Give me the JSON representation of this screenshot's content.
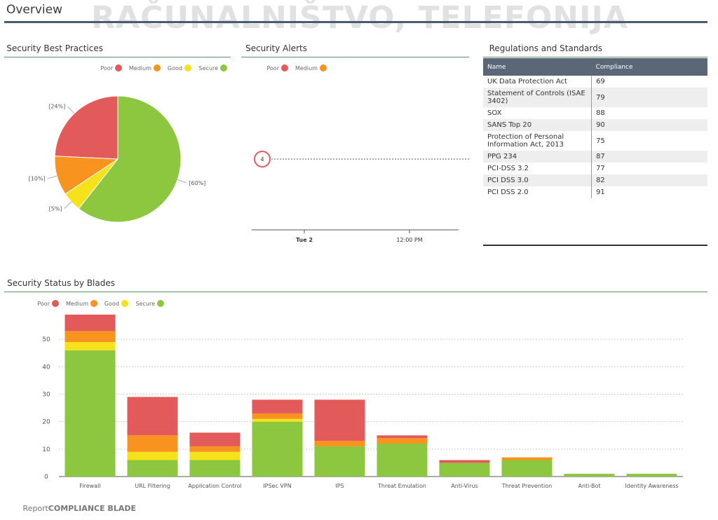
{
  "header": {
    "title": "Overview",
    "watermark": "RAČUNALNIŠTVO, TELEFONIJA"
  },
  "colors": {
    "secure": "#8dc63f",
    "good": "#f6e21a",
    "medium": "#f7931e",
    "poor": "#e25a5a",
    "header_rule": "#4a5a73",
    "table_header": "#5b6677"
  },
  "best_practices": {
    "title": "Security Best Practices",
    "legend": [
      "Secure",
      "Good",
      "Medium",
      "Poor"
    ]
  },
  "alerts": {
    "title": "Security Alerts",
    "legend": [
      "Medium",
      "Poor"
    ],
    "marker_label": "4",
    "x_ticks": [
      "Tue 2",
      "12:00 PM"
    ]
  },
  "regulations": {
    "title": "Regulations and Standards",
    "columns": [
      "Name",
      "Compliance"
    ],
    "rows": [
      {
        "name": "UK Data Protection Act",
        "compliance": "69"
      },
      {
        "name": "Statement of Controls (ISAE 3402)",
        "compliance": "79"
      },
      {
        "name": "SOX",
        "compliance": "88"
      },
      {
        "name": "SANS Top 20",
        "compliance": "90"
      },
      {
        "name": "Protection of Personal Information Act, 2013",
        "compliance": "75"
      },
      {
        "name": "PPG 234",
        "compliance": "87"
      },
      {
        "name": "PCI-DSS 3.2",
        "compliance": "77"
      },
      {
        "name": "PCI DSS 3.0",
        "compliance": "82"
      },
      {
        "name": "PCI DSS 2.0",
        "compliance": "91"
      }
    ]
  },
  "blades": {
    "title": "Security Status by Blades",
    "legend": [
      "Secure",
      "Good",
      "Medium",
      "Poor"
    ]
  },
  "footer": {
    "bold": "COMPLIANCE BLADE",
    "normal": " Report"
  },
  "chart_data": [
    {
      "type": "pie",
      "title": "Security Best Practices",
      "slices": [
        {
          "name": "Poor",
          "value": 24,
          "label": "[24%]"
        },
        {
          "name": "Medium",
          "value": 10,
          "label": "[10%]"
        },
        {
          "name": "Good",
          "value": 5,
          "label": "[5%]"
        },
        {
          "name": "Secure",
          "value": 60,
          "label": "[60%]"
        }
      ]
    },
    {
      "type": "scatter",
      "title": "Security Alerts",
      "x": [
        "Tue 2",
        "12:00 PM"
      ],
      "points": [
        {
          "series": "Poor",
          "x": "Tue 2",
          "value": 4
        }
      ]
    },
    {
      "type": "bar",
      "stacked": true,
      "title": "Security Status by Blades",
      "categories": [
        "Firewall",
        "URL Filtering",
        "Application Control",
        "IPSec VPN",
        "IPS",
        "Threat Emulation",
        "Anti-Virus",
        "Threat Prevention",
        "Anti-Bot",
        "Identity Awareness"
      ],
      "series": [
        {
          "name": "Secure",
          "values": [
            46,
            6,
            6,
            20,
            11,
            12,
            5,
            6,
            1,
            1
          ]
        },
        {
          "name": "Good",
          "values": [
            3,
            3,
            3,
            1,
            0,
            0,
            0,
            0,
            0,
            0
          ]
        },
        {
          "name": "Medium",
          "values": [
            4,
            6,
            2,
            2,
            2,
            2,
            0,
            1,
            0,
            0
          ]
        },
        {
          "name": "Poor",
          "values": [
            6,
            14,
            5,
            5,
            15,
            1,
            1,
            0,
            0,
            0
          ]
        }
      ],
      "yticks": [
        0,
        10,
        20,
        30,
        40,
        50
      ],
      "ylim": [
        0,
        60
      ],
      "grid": true,
      "legend_position": "top-left"
    }
  ]
}
